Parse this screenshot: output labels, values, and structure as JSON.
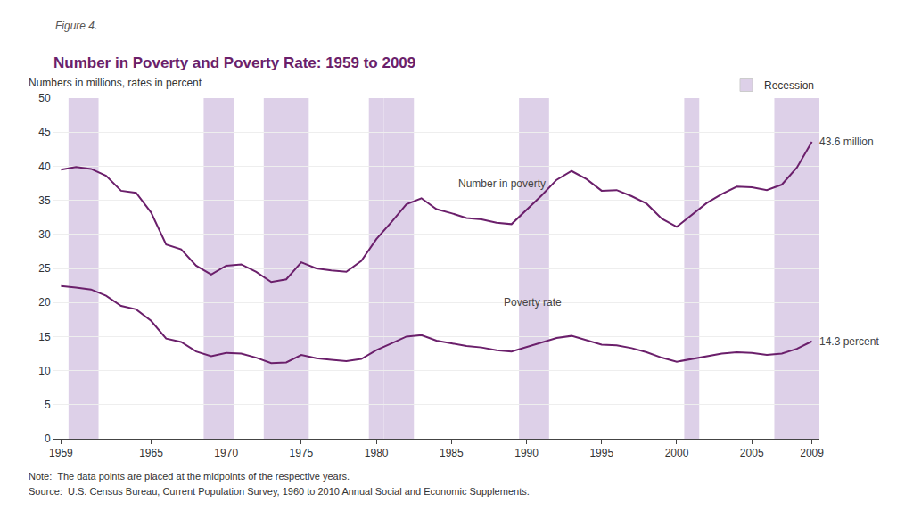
{
  "chart_data": {
    "type": "line",
    "subtitle": "Figure 4.",
    "title": "Number in Poverty and Poverty Rate: 1959 to 2009",
    "ylabel": "Numbers in millions, rates in percent",
    "note": "Note:  The data points are placed at the midpoints of the respective years.",
    "source": "Source:  U.S. Census Bureau, Current Population Survey, 1960 to 2010 Annual Social and Economic Supplements.",
    "x": [
      1959,
      1960,
      1961,
      1962,
      1963,
      1964,
      1965,
      1966,
      1967,
      1968,
      1969,
      1970,
      1971,
      1972,
      1973,
      1974,
      1975,
      1976,
      1977,
      1978,
      1979,
      1980,
      1981,
      1982,
      1983,
      1984,
      1985,
      1986,
      1987,
      1988,
      1989,
      1990,
      1991,
      1992,
      1993,
      1994,
      1995,
      1996,
      1997,
      1998,
      1999,
      2000,
      2001,
      2002,
      2003,
      2004,
      2005,
      2006,
      2007,
      2008,
      2009
    ],
    "series": [
      {
        "name": "Number in poverty",
        "color": "#6b1f6b",
        "values": [
          39.5,
          39.9,
          39.6,
          38.6,
          36.4,
          36.1,
          33.2,
          28.5,
          27.8,
          25.4,
          24.1,
          25.4,
          25.6,
          24.5,
          23.0,
          23.4,
          25.9,
          25.0,
          24.7,
          24.5,
          26.1,
          29.3,
          31.8,
          34.4,
          35.3,
          33.7,
          33.1,
          32.4,
          32.2,
          31.7,
          31.5,
          33.6,
          35.7,
          38.0,
          39.3,
          38.1,
          36.4,
          36.5,
          35.6,
          34.5,
          32.3,
          31.1,
          32.9,
          34.6,
          35.9,
          37.0,
          36.9,
          36.5,
          37.3,
          39.8,
          43.6
        ]
      },
      {
        "name": "Poverty rate",
        "color": "#6b1f6b",
        "values": [
          22.4,
          22.2,
          21.9,
          21.0,
          19.5,
          19.0,
          17.3,
          14.7,
          14.2,
          12.8,
          12.1,
          12.6,
          12.5,
          11.9,
          11.1,
          11.2,
          12.3,
          11.8,
          11.6,
          11.4,
          11.7,
          13.0,
          14.0,
          15.0,
          15.2,
          14.4,
          14.0,
          13.6,
          13.4,
          13.0,
          12.8,
          13.5,
          14.2,
          14.8,
          15.1,
          14.5,
          13.8,
          13.7,
          13.3,
          12.7,
          11.9,
          11.3,
          11.7,
          12.1,
          12.5,
          12.7,
          12.6,
          12.3,
          12.5,
          13.2,
          14.3
        ]
      }
    ],
    "recessions": {
      "label": "Recession",
      "color": "#ddd0e8",
      "periods": [
        [
          1960,
          1961
        ],
        [
          1969,
          1970
        ],
        [
          1973,
          1975
        ],
        [
          1980,
          1980
        ],
        [
          1981,
          1982
        ],
        [
          1990,
          1991
        ],
        [
          2001,
          2001
        ],
        [
          2007,
          2009
        ]
      ]
    },
    "annotations": [
      {
        "text": "Poverty rate",
        "x": 1988,
        "y": 20.0
      },
      {
        "text": "Number in poverty",
        "x": 1985,
        "y": 37.5
      },
      {
        "text": "43.6 million",
        "x": 2009,
        "y": 43.6
      },
      {
        "text": "14.3 percent",
        "x": 2009,
        "y": 14.3
      }
    ],
    "xlim": [
      1958.5,
      2009.5
    ],
    "xticks": [
      1959,
      1965,
      1970,
      1975,
      1980,
      1985,
      1990,
      1995,
      2000,
      2005,
      2009
    ],
    "ylim": [
      0,
      50
    ],
    "yticks": [
      0,
      5,
      10,
      15,
      20,
      25,
      30,
      35,
      40,
      45,
      50
    ],
    "grid": true,
    "legend": "upper right"
  }
}
